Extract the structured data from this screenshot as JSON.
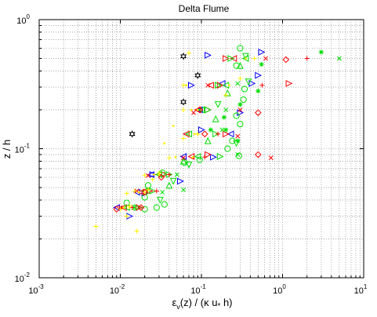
{
  "chart_data": {
    "type": "scatter",
    "title": "Delta Flume",
    "xlabel": "ε_v(z) / (κ u_* h)",
    "xlabel_parts": {
      "base": "ε",
      "sub1": "v",
      "mid": "(z) / (κ u",
      "sub2": "*",
      "end": " h)"
    },
    "ylabel": "z / h",
    "x_scale": "log",
    "y_scale": "log",
    "xlim": [
      0.001,
      10
    ],
    "ylim": [
      0.01,
      1
    ],
    "grid": "dotted, major and minor",
    "x_ticks": [
      {
        "value": 0.001,
        "base": "10",
        "exp": "-3"
      },
      {
        "value": 0.01,
        "base": "10",
        "exp": "-2"
      },
      {
        "value": 0.1,
        "base": "10",
        "exp": "-1"
      },
      {
        "value": 1,
        "base": "10",
        "exp": "0"
      },
      {
        "value": 10,
        "base": "10",
        "exp": "1"
      }
    ],
    "y_ticks": [
      {
        "value": 0.01,
        "base": "10",
        "exp": "-2"
      },
      {
        "value": 0.1,
        "base": "10",
        "exp": "-1"
      },
      {
        "value": 1,
        "base": "10",
        "exp": "0"
      }
    ],
    "series": [
      {
        "marker": "triangle-right",
        "color": "#0000ff",
        "points": [
          [
            0.55,
            0.56
          ],
          [
            0.12,
            0.53
          ],
          [
            0.5,
            0.37
          ],
          [
            0.075,
            0.31
          ],
          [
            0.42,
            0.32
          ],
          [
            0.3,
            0.19
          ],
          [
            0.1,
            0.14
          ],
          [
            0.14,
            0.086
          ],
          [
            0.025,
            0.063
          ],
          [
            0.055,
            0.056
          ],
          [
            0.02,
            0.045
          ],
          [
            0.013,
            0.03
          ]
        ]
      },
      {
        "marker": "triangle-left",
        "color": "#0000ff",
        "points": [
          [
            0.18,
            0.32
          ],
          [
            0.095,
            0.2
          ],
          [
            0.23,
            0.13
          ],
          [
            0.06,
            0.087
          ],
          [
            0.024,
            0.063
          ],
          [
            0.016,
            0.046
          ],
          [
            0.009,
            0.035
          ]
        ]
      },
      {
        "marker": "triangle-right",
        "color": "#ff0000",
        "points": [
          [
            0.2,
            0.5
          ],
          [
            1.2,
            0.32
          ],
          [
            0.17,
            0.31
          ],
          [
            0.12,
            0.2
          ],
          [
            0.2,
            0.13
          ],
          [
            0.12,
            0.09
          ],
          [
            0.035,
            0.063
          ],
          [
            0.023,
            0.047
          ],
          [
            0.017,
            0.035
          ]
        ]
      },
      {
        "marker": "triangle-left",
        "color": "#ff0000",
        "points": [
          [
            0.25,
            0.5
          ],
          [
            0.13,
            0.31
          ],
          [
            0.09,
            0.2
          ],
          [
            0.065,
            0.13
          ],
          [
            0.075,
            0.087
          ],
          [
            0.03,
            0.063
          ],
          [
            0.018,
            0.046
          ],
          [
            0.011,
            0.035
          ]
        ]
      },
      {
        "marker": "triangle-right",
        "color": "#00dd00",
        "points": [
          [
            0.23,
            0.5
          ],
          [
            0.16,
            0.31
          ],
          [
            0.12,
            0.2
          ],
          [
            0.15,
            0.13
          ],
          [
            0.17,
            0.087
          ],
          [
            0.04,
            0.063
          ],
          [
            0.025,
            0.047
          ],
          [
            0.016,
            0.035
          ]
        ]
      },
      {
        "marker": "triangle-left",
        "color": "#00dd00",
        "points": [
          [
            0.35,
            0.5
          ],
          [
            0.2,
            0.31
          ],
          [
            0.1,
            0.2
          ],
          [
            0.07,
            0.13
          ],
          [
            0.09,
            0.087
          ],
          [
            0.03,
            0.063
          ],
          [
            0.02,
            0.047
          ],
          [
            0.012,
            0.035
          ]
        ]
      },
      {
        "marker": "triangle-down",
        "color": "#00dd00",
        "points": [
          [
            0.35,
            0.52
          ],
          [
            0.38,
            0.33
          ],
          [
            0.16,
            0.22
          ],
          [
            0.27,
            0.11
          ],
          [
            0.07,
            0.075
          ],
          [
            0.045,
            0.056
          ],
          [
            0.031,
            0.04
          ]
        ]
      },
      {
        "marker": "triangle-up",
        "color": "#00dd00",
        "points": [
          [
            0.3,
            0.44
          ],
          [
            0.21,
            0.27
          ],
          [
            0.15,
            0.17
          ],
          [
            0.12,
            0.115
          ],
          [
            0.06,
            0.08
          ],
          [
            0.04,
            0.052
          ]
        ]
      },
      {
        "marker": "circle",
        "color": "#00dd00",
        "points": [
          [
            0.3,
            0.6
          ],
          [
            0.27,
            0.44
          ],
          [
            0.34,
            0.29
          ],
          [
            0.33,
            0.24
          ],
          [
            0.27,
            0.18
          ],
          [
            0.3,
            0.155
          ],
          [
            0.24,
            0.115
          ],
          [
            0.21,
            0.1
          ],
          [
            0.29,
            0.088
          ],
          [
            0.062,
            0.078
          ],
          [
            0.095,
            0.082
          ],
          [
            0.033,
            0.065
          ],
          [
            0.022,
            0.052
          ],
          [
            0.02,
            0.042
          ],
          [
            0.035,
            0.037
          ],
          [
            0.028,
            0.035
          ],
          [
            0.012,
            0.038
          ],
          [
            0.02,
            0.034
          ]
        ]
      },
      {
        "marker": "diamond",
        "color": "#ff0000",
        "points": [
          [
            1.1,
            0.49
          ],
          [
            0.5,
            0.19
          ],
          [
            0.5,
            0.09
          ],
          [
            0.11,
            0.13
          ],
          [
            0.095,
            0.2
          ],
          [
            0.02,
            0.046
          ],
          [
            0.018,
            0.035
          ],
          [
            0.032,
            0.06
          ],
          [
            0.009,
            0.034
          ]
        ]
      },
      {
        "marker": "x",
        "color": "#ff0000",
        "points": [
          [
            0.62,
            0.5
          ],
          [
            0.72,
            0.085
          ],
          [
            0.3,
            0.2
          ],
          [
            0.28,
            0.125
          ],
          [
            0.12,
            0.31
          ],
          [
            0.08,
            0.19
          ],
          [
            0.06,
            0.085
          ],
          [
            0.022,
            0.062
          ],
          [
            0.016,
            0.047
          ],
          [
            0.01,
            0.035
          ]
        ]
      },
      {
        "marker": "plus",
        "color": "#ff0000",
        "points": [
          [
            2.0,
            0.5
          ],
          [
            0.56,
            0.31
          ],
          [
            0.16,
            0.13
          ],
          [
            0.11,
            0.086
          ],
          [
            0.04,
            0.063
          ],
          [
            0.028,
            0.047
          ],
          [
            0.014,
            0.035
          ]
        ]
      },
      {
        "marker": "hexagram",
        "color": "#000000",
        "points": [
          [
            0.06,
            0.52
          ],
          [
            0.09,
            0.37
          ],
          [
            0.06,
            0.23
          ],
          [
            0.014,
            0.13
          ]
        ]
      },
      {
        "marker": "star",
        "color": "#00dd00",
        "points": [
          [
            3.0,
            0.56
          ],
          [
            0.55,
            0.45
          ],
          [
            0.5,
            0.28
          ],
          [
            0.3,
            0.22
          ],
          [
            0.19,
            0.175
          ],
          [
            0.2,
            0.14
          ],
          [
            0.28,
            0.115
          ],
          [
            0.13,
            0.14
          ]
        ]
      },
      {
        "marker": "x",
        "color": "#00dd00",
        "points": [
          [
            5.0,
            0.5
          ],
          [
            0.28,
            0.32
          ],
          [
            0.2,
            0.2
          ],
          [
            0.18,
            0.14
          ],
          [
            0.28,
            0.09
          ],
          [
            0.05,
            0.063
          ],
          [
            0.033,
            0.046
          ],
          [
            0.015,
            0.035
          ],
          [
            0.06,
            0.048
          ]
        ]
      },
      {
        "marker": "plus",
        "color": "#ffee00",
        "points": [
          [
            0.07,
            0.55
          ],
          [
            0.45,
            0.5
          ],
          [
            0.3,
            0.35
          ],
          [
            0.06,
            0.31
          ],
          [
            0.2,
            0.26
          ],
          [
            0.06,
            0.2
          ],
          [
            0.09,
            0.13
          ],
          [
            0.04,
            0.085
          ],
          [
            0.06,
            0.12
          ],
          [
            0.02,
            0.062
          ],
          [
            0.015,
            0.047
          ],
          [
            0.01,
            0.034
          ],
          [
            0.012,
            0.03
          ],
          [
            0.005,
            0.025
          ],
          [
            0.016,
            0.023
          ],
          [
            0.012,
            0.045
          ],
          [
            0.03,
            0.065
          ],
          [
            0.025,
            0.058
          ],
          [
            0.022,
            0.048
          ],
          [
            0.013,
            0.036
          ]
        ]
      },
      {
        "marker": "dot",
        "color": "#ffee00",
        "points": [
          [
            0.065,
            0.31
          ],
          [
            0.075,
            0.2
          ],
          [
            0.082,
            0.13
          ],
          [
            0.078,
            0.086
          ],
          [
            0.03,
            0.063
          ],
          [
            0.02,
            0.046
          ],
          [
            0.013,
            0.035
          ],
          [
            0.35,
            0.5
          ],
          [
            0.22,
            0.31
          ],
          [
            0.09,
            0.2
          ],
          [
            0.09,
            0.13
          ],
          [
            0.048,
            0.086
          ],
          [
            0.026,
            0.063
          ],
          [
            0.017,
            0.046
          ],
          [
            0.011,
            0.035
          ],
          [
            0.045,
            0.15
          ],
          [
            0.035,
            0.11
          ]
        ]
      }
    ]
  }
}
